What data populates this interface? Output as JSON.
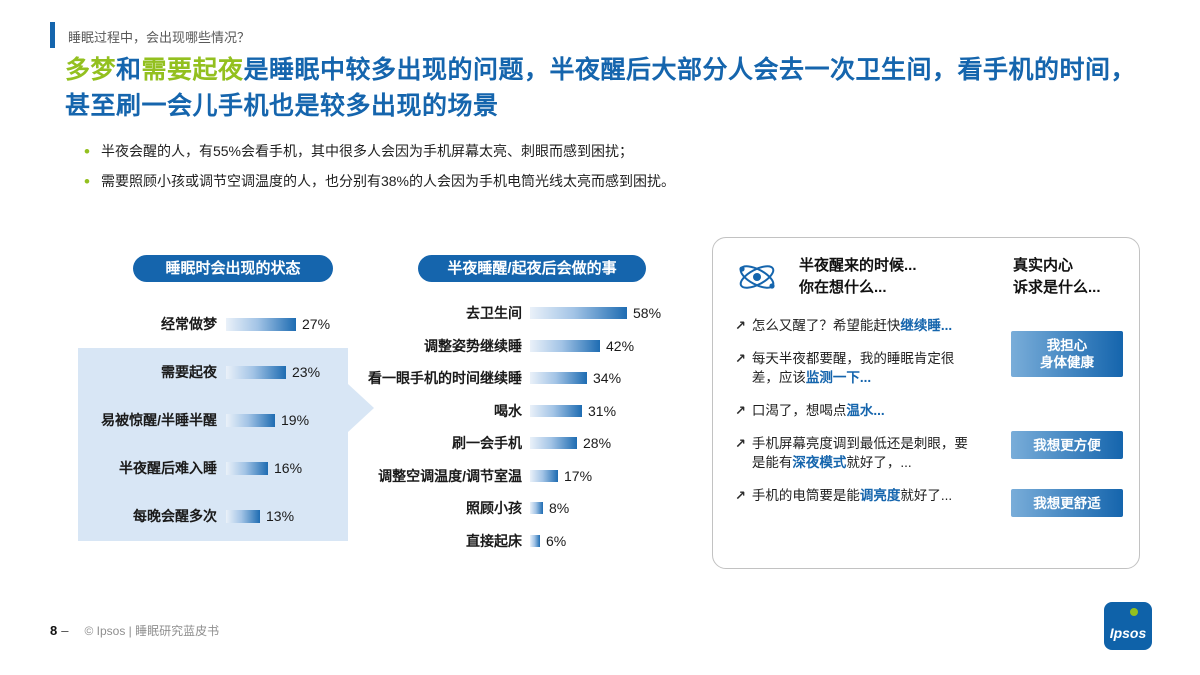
{
  "header": {
    "kicker": "睡眠过程中，会出现哪些情况？",
    "title_segments": [
      {
        "text": "多梦",
        "color": "green"
      },
      {
        "text": "和",
        "color": "blue"
      },
      {
        "text": "需要起夜",
        "color": "green"
      },
      {
        "text": "是睡眠中较多出现的问题，半夜醒后大部分人会去一次卫生间，看手机的时间，甚至刷一会儿手机也是较多出现的场景",
        "color": "blue"
      }
    ]
  },
  "bullets": [
    "半夜会醒的人，有55%会看手机，其中很多人会因为手机屏幕太亮、刺眼而感到困扰；",
    "需要照顾小孩或调节空调温度的人，也分别有38%的人会因为手机电筒光线太亮而感到困扰。"
  ],
  "chart_data": [
    {
      "type": "bar",
      "orientation": "horizontal",
      "title": "睡眠时会出现的状态",
      "categories": [
        "经常做梦",
        "需要起夜",
        "易被惊醒/半睡半醒",
        "半夜醒后难入睡",
        "每晚会醒多次"
      ],
      "values": [
        27,
        23,
        19,
        16,
        13
      ],
      "unit": "%",
      "xlim": [
        0,
        30
      ],
      "highlighted_categories": [
        "需要起夜",
        "易被惊醒/半睡半醒",
        "半夜醒后难入睡",
        "每晚会醒多次"
      ]
    },
    {
      "type": "bar",
      "orientation": "horizontal",
      "title": "半夜睡醒/起夜后会做的事",
      "categories": [
        "去卫生间",
        "调整姿势继续睡",
        "看一眼手机的时间继续睡",
        "喝水",
        "刷一会手机",
        "调整空调温度/调节室温",
        "照顾小孩",
        "直接起床"
      ],
      "values": [
        58,
        42,
        34,
        31,
        28,
        17,
        8,
        6
      ],
      "unit": "%",
      "xlim": [
        0,
        60
      ]
    }
  ],
  "panel": {
    "icon": "atom-icon",
    "thoughts_title_lines": [
      "半夜醒来的时候...",
      "你在想什么..."
    ],
    "needs_title_lines": [
      "真实内心",
      "诉求是什么..."
    ],
    "bullet_icon": "↗",
    "thoughts": [
      {
        "segments": [
          {
            "text": "怎么又醒了？希望能赶快",
            "highlight": false
          },
          {
            "text": "继续睡",
            "highlight": true
          },
          {
            "text": "...",
            "highlight": true
          }
        ]
      },
      {
        "segments": [
          {
            "text": "每天半夜都要醒，我的睡眠肯定很差，应该",
            "highlight": false
          },
          {
            "text": "监测一下",
            "highlight": true
          },
          {
            "text": "...",
            "highlight": true
          }
        ]
      },
      {
        "segments": [
          {
            "text": "口渴了，想喝点",
            "highlight": false
          },
          {
            "text": "温水",
            "highlight": true
          },
          {
            "text": "...",
            "highlight": true
          }
        ]
      },
      {
        "segments": [
          {
            "text": "手机屏幕亮度调到最低还是刺眼，要是能有",
            "highlight": false
          },
          {
            "text": "深夜模式",
            "highlight": true
          },
          {
            "text": "就好了，...",
            "highlight": false
          }
        ]
      },
      {
        "segments": [
          {
            "text": "手机的电筒要是能",
            "highlight": false
          },
          {
            "text": "调亮度",
            "highlight": true
          },
          {
            "text": "就好了...",
            "highlight": false
          }
        ]
      }
    ],
    "need_buttons": [
      {
        "lines": [
          "我担心",
          "身体健康"
        ]
      },
      {
        "lines": [
          "我想更方便"
        ]
      },
      {
        "lines": [
          "我想更舒适"
        ]
      }
    ]
  },
  "footer": {
    "page_number": "8",
    "separator": "–",
    "credit": "© Ipsos | 睡眠研究蓝皮书",
    "logo_text": "Ipsos"
  },
  "colors": {
    "blue": "#1565ad",
    "green": "#93c01f",
    "highlight_bg": "#d8e6f5"
  }
}
